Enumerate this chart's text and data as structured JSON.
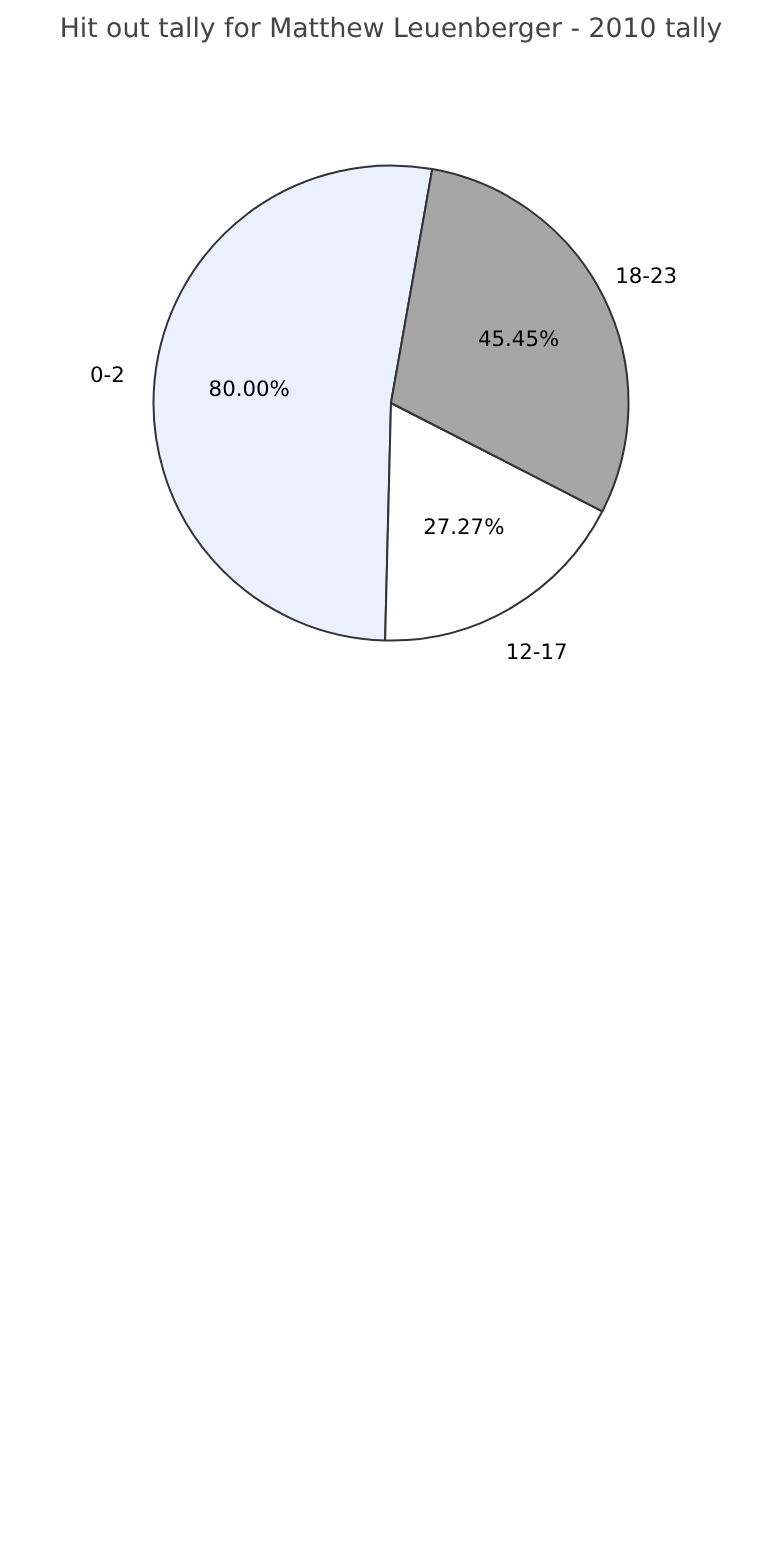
{
  "chart_data": {
    "type": "pie",
    "title": "Hit out tally for Matthew Leuenberger - 2010 tally",
    "categories": [
      "0-2",
      "12-17",
      "18-23"
    ],
    "values": [
      80.0,
      27.27,
      45.45
    ],
    "value_labels": [
      "80.00%",
      "27.27%",
      "45.45%"
    ],
    "colors": [
      "#eaf0fe",
      "#ffffff",
      "#a6a6a6"
    ]
  }
}
